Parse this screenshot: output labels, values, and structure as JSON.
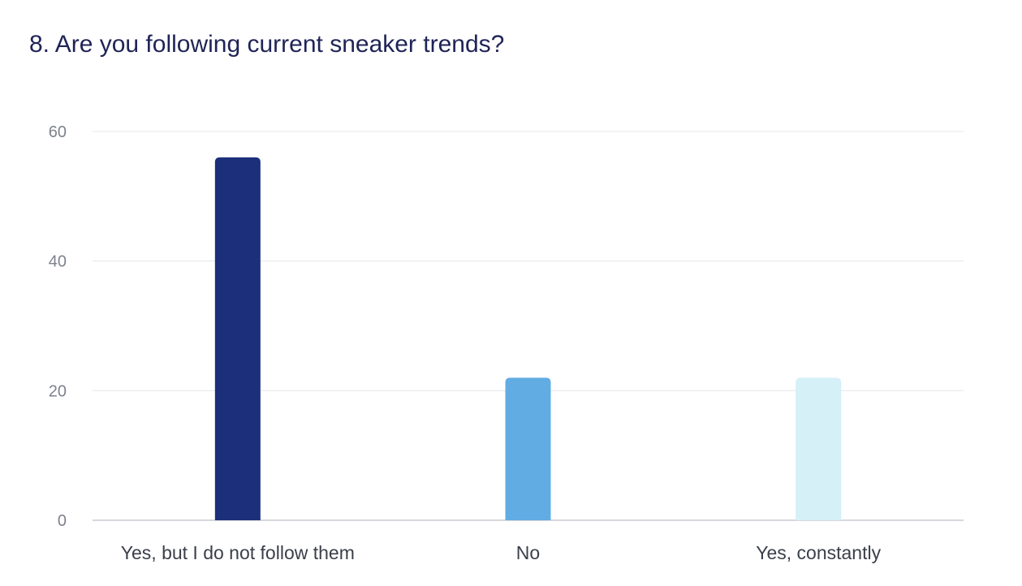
{
  "chart_data": {
    "type": "bar",
    "title": "8. Are you following current sneaker trends?",
    "categories": [
      "Yes, but I do not follow them",
      "No",
      "Yes, constantly"
    ],
    "values": [
      56,
      22,
      22
    ],
    "colors": [
      "#1b2f7a",
      "#61ace3",
      "#d6f0f8"
    ],
    "ylim": [
      0,
      60
    ],
    "yticks": [
      "0",
      "20",
      "40",
      "60"
    ],
    "ytick_values": [
      0,
      20,
      40,
      60
    ],
    "grid": true,
    "legend": "none"
  }
}
